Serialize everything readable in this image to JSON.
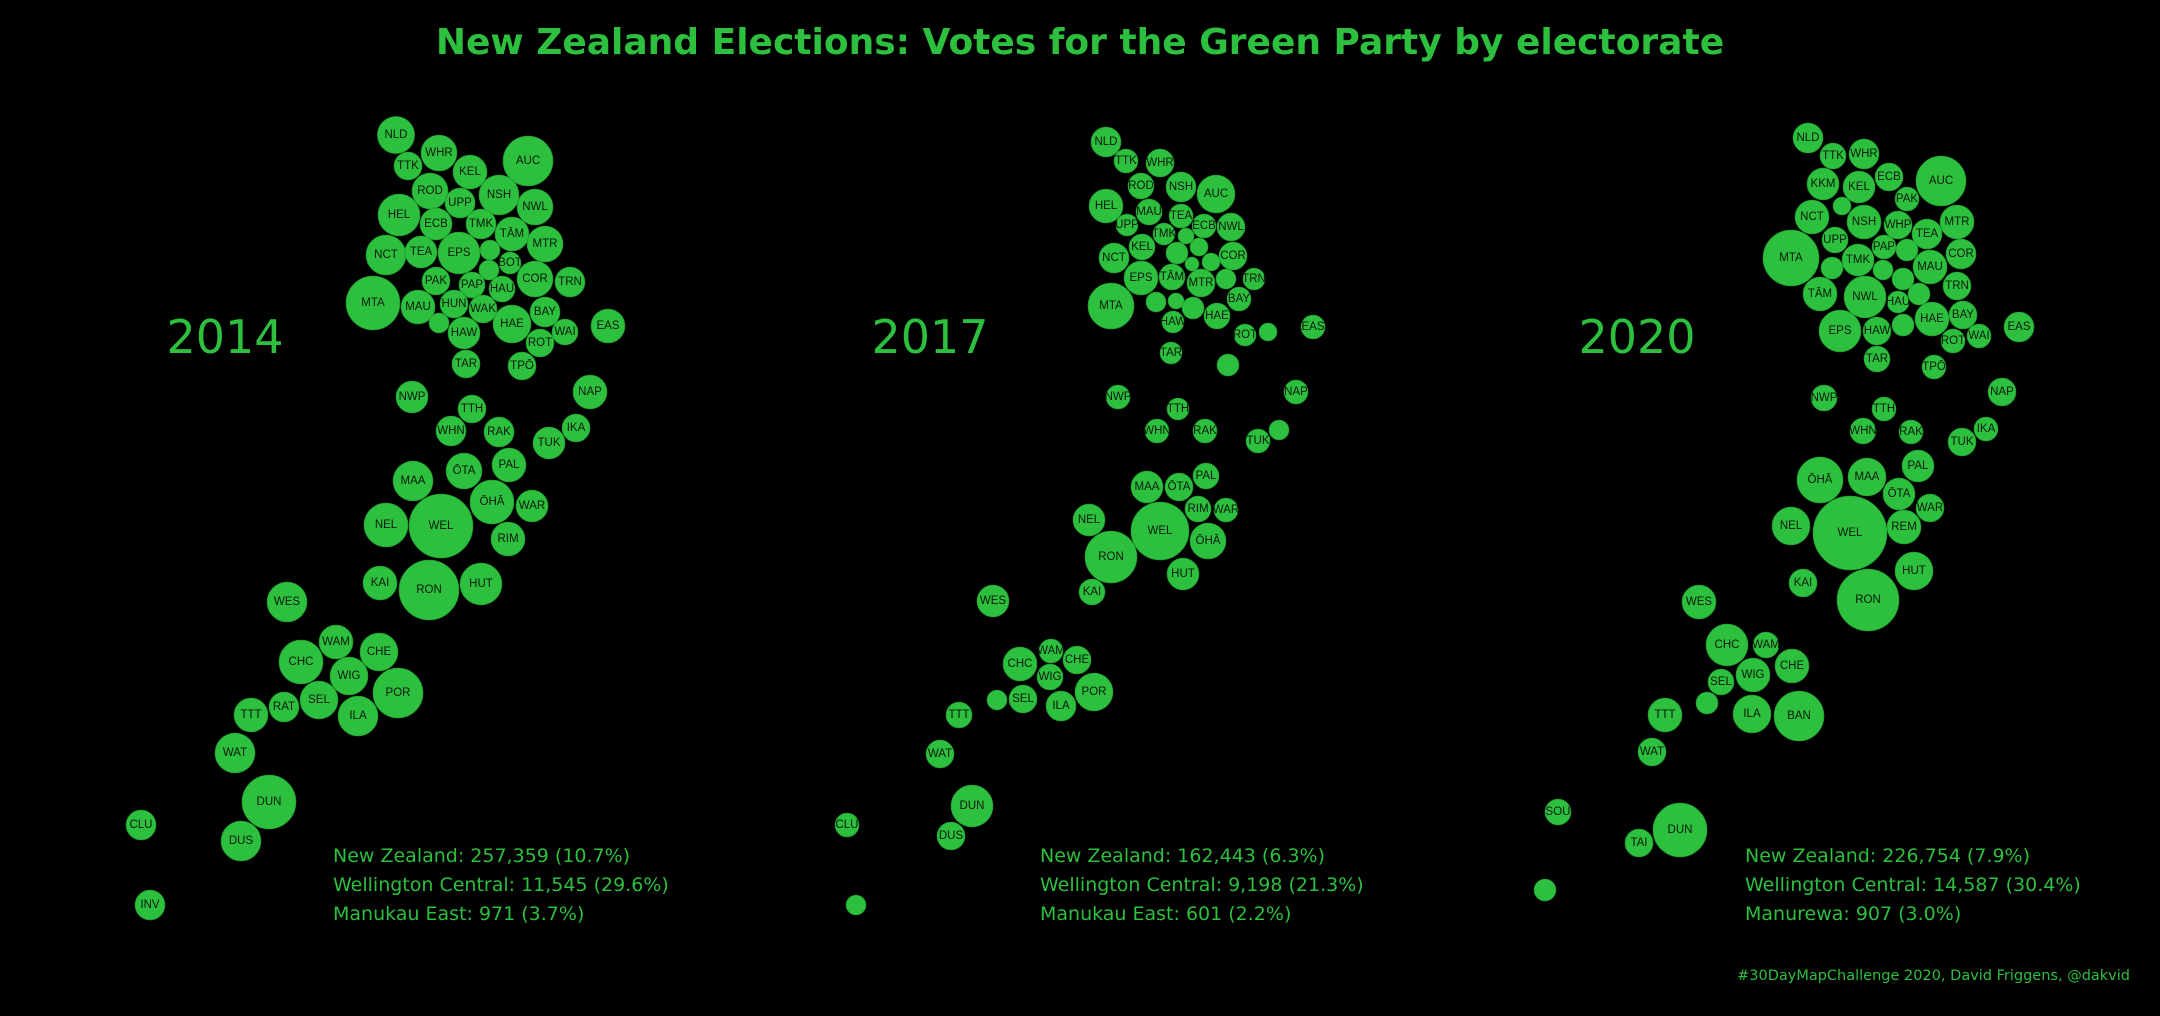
{
  "title": "New Zealand Elections: Votes for the Green Party by electorate",
  "footer": "#30DayMapChallenge 2020, David Friggens, @dakvid",
  "colors": {
    "background": "#000000",
    "accent": "#2dbf3e",
    "label": "#0a1a0a"
  },
  "panels": [
    {
      "year": "2014",
      "stats": [
        "New Zealand: 257,359 (10.7%)",
        "Wellington Central: 11,545 (29.6%)",
        "Manukau East: 971 (3.7%)"
      ],
      "electorates": [
        "NLD",
        "WHR",
        "TTK",
        "KEL",
        "AUC",
        "ROD",
        "UPP",
        "NSH",
        "NWL",
        "HEL",
        "ECB",
        "TMK",
        "TĀM",
        "MTR",
        "NCT",
        "TEA",
        "EPS",
        "BOT",
        "COR",
        "TRN",
        "PAK",
        "PAP",
        "HAU",
        "MTA",
        "MAU",
        "HUN",
        "WAK",
        "BAY",
        "EAS",
        "HAW",
        "HAE",
        "WAI",
        "ROT",
        "TAR",
        "TPŌ",
        "NWP",
        "NAP",
        "TTH",
        "WHN",
        "RAK",
        "IKA",
        "TUK",
        "PAL",
        "ŌTA",
        "MAA",
        "ŌHĀ",
        "WAR",
        "NEL",
        "WEL",
        "RIM",
        "KAI",
        "RON",
        "HUT",
        "WES",
        "WAM",
        "CHE",
        "CHC",
        "WIG",
        "POR",
        "RAT",
        "SEL",
        "ILA",
        "TTT",
        "WAT",
        "DUN",
        "CLU",
        "DUS",
        "INV"
      ]
    },
    {
      "year": "2017",
      "stats": [
        "New Zealand: 162,443 (6.3%)",
        "Wellington Central: 9,198 (21.3%)",
        "Manukau East: 601 (2.2%)"
      ],
      "electorates": [
        "NLD",
        "TTK",
        "WHR",
        "ROD",
        "NSH",
        "AUC",
        "HEL",
        "MAU",
        "TEA",
        "UPP",
        "ECB",
        "NWL",
        "TMK",
        "KEL",
        "NCT",
        "COR",
        "EPS",
        "TĀM",
        "MTR",
        "TRN",
        "MTA",
        "BAY",
        "HAE",
        "HAW",
        "ROT",
        "EAS",
        "TAR",
        "NWP",
        "NAP",
        "TTH",
        "WHN",
        "RAK",
        "TUK",
        "PAL",
        "MAA",
        "ŌTA",
        "RIM",
        "WAR",
        "NEL",
        "WEL",
        "ŌHĀ",
        "RON",
        "HUT",
        "KAI",
        "WES",
        "WAM",
        "CHE",
        "CHC",
        "WIG",
        "POR",
        "SEL",
        "ILA",
        "TTT",
        "WAT",
        "DUN",
        "CLU",
        "DUS"
      ]
    },
    {
      "year": "2020",
      "stats": [
        "New Zealand: 226,754 (7.9%)",
        "Wellington Central: 14,587 (30.4%)",
        "Manurewa: 907 (3.0%)"
      ],
      "electorates": [
        "NLD",
        "TTK",
        "WHR",
        "ECB",
        "AUC",
        "KKM",
        "KEL",
        "PAK",
        "NCT",
        "NSH",
        "WHP",
        "MTR",
        "TEA",
        "UPP",
        "PAP",
        "COR",
        "MTA",
        "TMK",
        "MAU",
        "TRN",
        "TĀM",
        "NWL",
        "HAU",
        "BAY",
        "EPS",
        "HAW",
        "HAE",
        "ROT",
        "WAI",
        "EAS",
        "TAR",
        "TPŌ",
        "NWP",
        "NAP",
        "TTH",
        "WHN",
        "RAK",
        "IKA",
        "TUK",
        "PAL",
        "ŌHĀ",
        "MAA",
        "ŌTA",
        "WAR",
        "NEL",
        "WEL",
        "REM",
        "HUT",
        "KAI",
        "RON",
        "WES",
        "CHC",
        "WAM",
        "CHE",
        "WIG",
        "SEL",
        "ILA",
        "BAN",
        "TTT",
        "WAT",
        "SOU",
        "DUN",
        "TAI"
      ]
    }
  ]
}
